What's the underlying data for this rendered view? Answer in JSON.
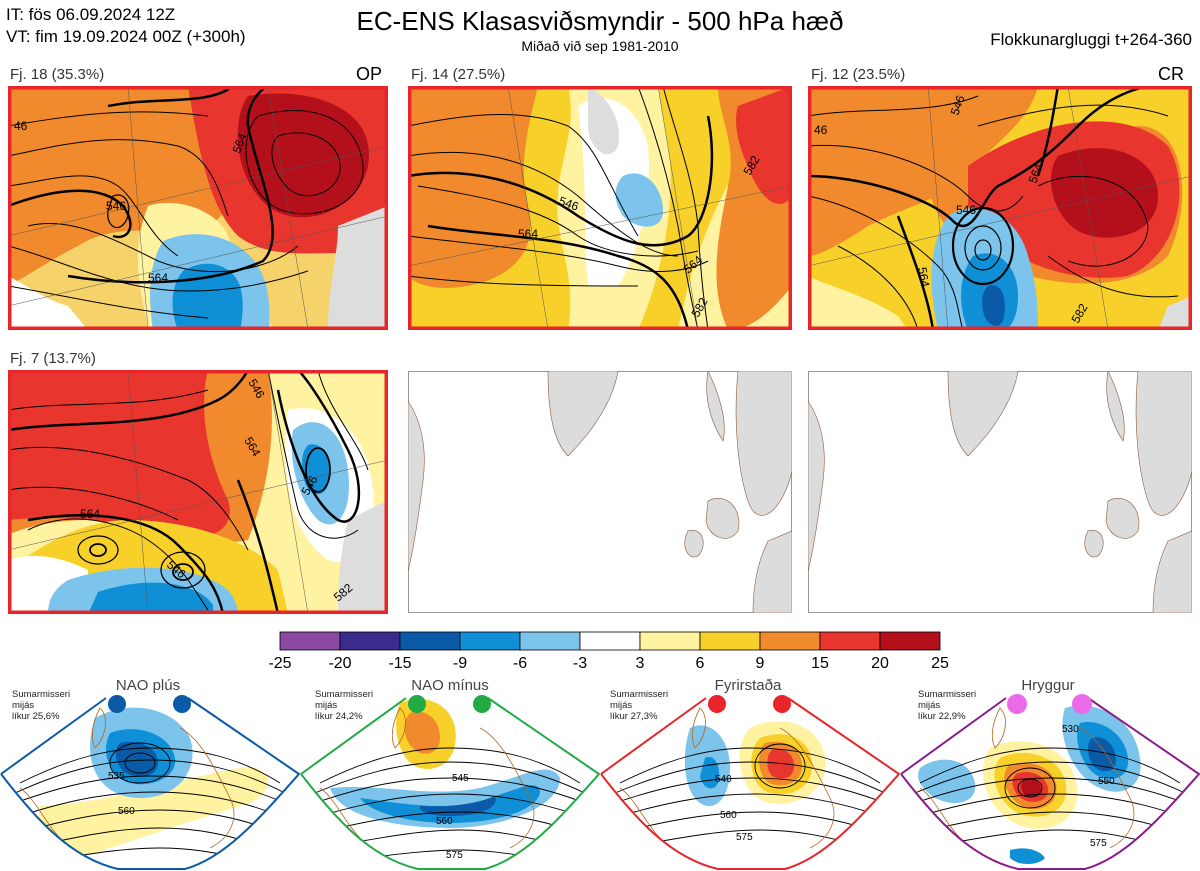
{
  "header": {
    "it_line": "IT: fös 06.09.2024 12Z",
    "vt_line": "VT: fim 19.09.2024 00Z  (+300h)",
    "title": "EC-ENS Klasasviðsmyndir - 500 hPa hæð",
    "subtitle": "Miðað við sep 1981-2010",
    "window": "Flokkunargluggi t+264-360"
  },
  "panels": [
    {
      "label": "Fj. 18 (35.3%)",
      "tag": "OP",
      "contours": [
        "46",
        "546",
        "564",
        "564"
      ]
    },
    {
      "label": "Fj. 14 (27.5%)",
      "tag": "",
      "contours": [
        "546",
        "564",
        "564",
        "582",
        "582"
      ]
    },
    {
      "label": "Fj. 12 (23.5%)",
      "tag": "CR",
      "contours": [
        "46",
        "546",
        "564",
        "546",
        "564",
        "582"
      ]
    },
    {
      "label": "Fj. 7 (13.7%)",
      "tag": "",
      "contours": [
        "564",
        "546",
        "564",
        "546",
        "546",
        "582"
      ]
    },
    {
      "label": "",
      "tag": ""
    },
    {
      "label": "",
      "tag": ""
    }
  ],
  "colorbar": {
    "ticks": [
      "-25",
      "-20",
      "-15",
      "-9",
      "-6",
      "-3",
      "3",
      "6",
      "9",
      "15",
      "20",
      "25"
    ],
    "colors": [
      "#8b4aa1",
      "#3a2b8c",
      "#0b5aa8",
      "#0f8fd5",
      "#7cc4ec",
      "#ffffff",
      "#fff2a0",
      "#f7d12a",
      "#f08a2c",
      "#e8362f",
      "#b3101b"
    ]
  },
  "regimes": [
    {
      "title": "NAO plús",
      "note": [
        "Sumarmisseri",
        "mijás",
        "líkur 25,6%"
      ],
      "frame_color": "#0b5aa8",
      "dot_color": "#0b5aa8",
      "contours": [
        "535",
        "560"
      ]
    },
    {
      "title": "NAO mínus",
      "note": [
        "Sumarmisseri",
        "mijás",
        "líkur 24,2%"
      ],
      "frame_color": "#22aa44",
      "dot_color": "#22aa44",
      "contours": [
        "545",
        "560",
        "575"
      ]
    },
    {
      "title": "Fyrirstaða",
      "note": [
        "Sumarmisseri",
        "mijás",
        "líkur 27,3%"
      ],
      "frame_color": "#e8262a",
      "dot_color": "#e8262a",
      "contours": [
        "540",
        "560",
        "575"
      ]
    },
    {
      "title": "Hryggur",
      "note": [
        "Sumarmisseri",
        "mijás",
        "líkur 22,9%"
      ],
      "frame_color": "#8a1b8a",
      "dot_color": "#ea6ae8",
      "contours": [
        "530",
        "550",
        "575"
      ]
    }
  ]
}
